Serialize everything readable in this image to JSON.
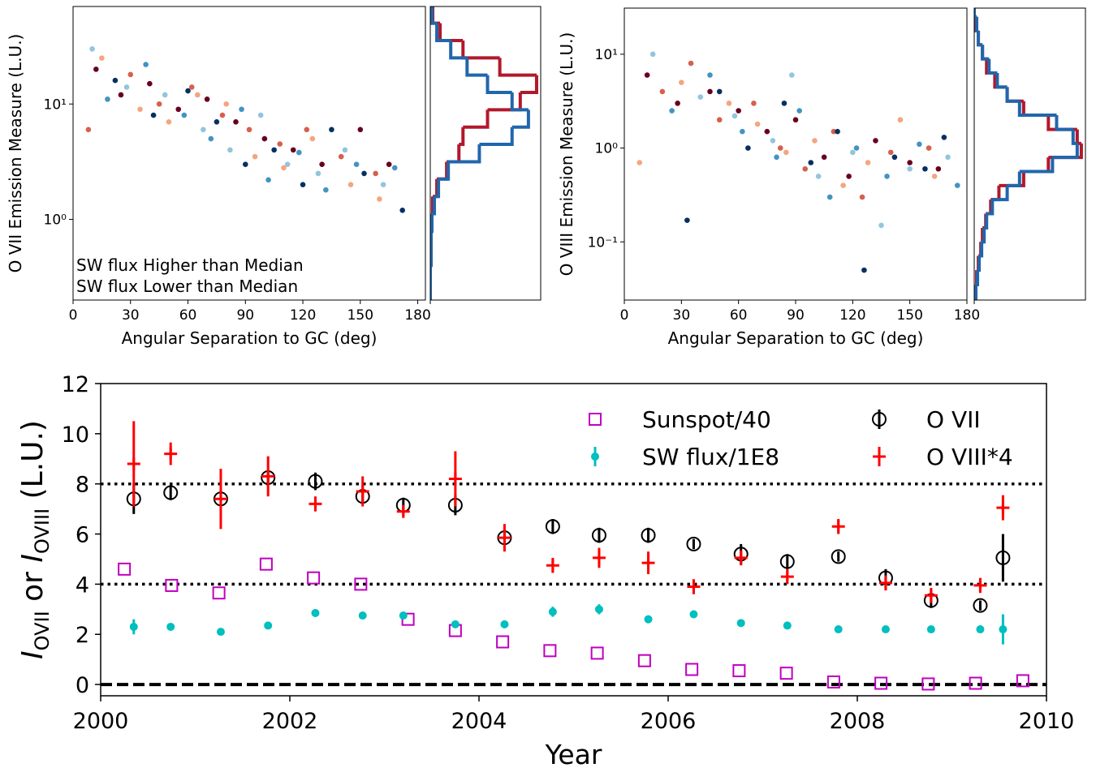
{
  "chart_data": [
    {
      "type": "scatter",
      "xlabel": "Angular Separation to GC (deg)",
      "ylabel": "O VII Emission Measure (L.U.)",
      "xlim": [
        0,
        184
      ],
      "xticks": [
        0,
        30,
        60,
        90,
        120,
        150,
        180
      ],
      "ylim": [
        0.2,
        70
      ],
      "yscale": "log",
      "yticks": [
        {
          "value": 1,
          "label": "10⁰"
        },
        {
          "value": 10,
          "label": "10¹"
        }
      ],
      "series": [
        {
          "color": "#67001f",
          "x": [
            12,
            25,
            40,
            55,
            70,
            85,
            100,
            115,
            130,
            150,
            165
          ],
          "y": [
            20,
            12,
            15,
            9,
            11,
            7,
            5,
            4,
            3,
            6,
            3
          ]
        },
        {
          "color": "#d6604d",
          "x": [
            8,
            30,
            45,
            62,
            78,
            92,
            108,
            122,
            140,
            158
          ],
          "y": [
            6,
            18,
            10,
            14,
            8,
            6,
            4.5,
            6,
            3.5,
            2.5
          ]
        },
        {
          "color": "#f4a582",
          "x": [
            15,
            35,
            50,
            65,
            80,
            95,
            110,
            125,
            145,
            160
          ],
          "y": [
            25,
            9,
            7,
            12,
            10,
            3.5,
            2.8,
            5,
            2,
            1.5
          ]
        },
        {
          "color": "#92c5de",
          "x": [
            10,
            28,
            48,
            68,
            82,
            98,
            112,
            128,
            142,
            162
          ],
          "y": [
            30,
            14,
            12,
            6,
            4,
            8,
            3,
            2.5,
            4,
            2
          ]
        },
        {
          "color": "#4393c3",
          "x": [
            18,
            38,
            58,
            72,
            88,
            102,
            118,
            132,
            148,
            168
          ],
          "y": [
            11,
            22,
            8,
            5,
            9,
            2.2,
            3.8,
            1.8,
            3,
            2.8
          ]
        },
        {
          "color": "#053061",
          "x": [
            22,
            42,
            60,
            75,
            90,
            105,
            120,
            135,
            152,
            172
          ],
          "y": [
            16,
            8,
            13,
            7,
            3,
            4,
            2,
            6,
            2.5,
            1.2
          ]
        }
      ],
      "hist_xlim": [
        0,
        135
      ],
      "histograms": [
        {
          "color": "#b2182b",
          "bins": [
            0.2,
            0.28,
            0.4,
            0.56,
            0.79,
            1.12,
            1.58,
            2.24,
            3.16,
            4.47,
            6.31,
            8.91,
            12.6,
            17.8,
            25.1,
            35.5,
            50.1,
            70.8
          ],
          "counts": [
            0,
            0,
            1,
            1,
            2,
            3,
            8,
            20,
            35,
            40,
            70,
            110,
            130,
            85,
            40,
            12,
            3
          ]
        },
        {
          "color": "#2166ac",
          "bins": [
            0.2,
            0.28,
            0.4,
            0.56,
            0.79,
            1.12,
            1.58,
            2.24,
            3.16,
            4.47,
            6.31,
            8.91,
            12.6,
            17.8,
            25.1,
            35.5,
            50.1,
            70.8
          ],
          "counts": [
            0,
            0,
            1,
            1,
            2,
            5,
            10,
            22,
            60,
            100,
            120,
            100,
            70,
            45,
            25,
            8,
            2
          ]
        }
      ],
      "annotations": [
        {
          "text": "SW flux Higher than Median",
          "color": "#b2182b"
        },
        {
          "text": "SW flux Lower than Median",
          "color": "#2166ac"
        }
      ]
    },
    {
      "type": "scatter",
      "xlabel": "Angular Separation to GC (deg)",
      "ylabel": "O VIII Emission Measure (L.U.)",
      "xlim": [
        0,
        180
      ],
      "xticks": [
        0,
        30,
        60,
        90,
        120,
        150,
        180
      ],
      "ylim": [
        0.024,
        31
      ],
      "yscale": "log",
      "yticks": [
        {
          "value": 0.1,
          "label": "10⁻¹"
        },
        {
          "value": 1,
          "label": "10⁰"
        },
        {
          "value": 10,
          "label": "10¹"
        }
      ],
      "series": [
        {
          "color": "#67001f",
          "x": [
            12,
            28,
            45,
            60,
            75,
            90,
            105,
            118,
            132,
            150,
            165
          ],
          "y": [
            6,
            3,
            4,
            2.5,
            1.5,
            2,
            0.8,
            0.5,
            1.2,
            0.7,
            0.6
          ]
        },
        {
          "color": "#d6604d",
          "x": [
            20,
            35,
            50,
            68,
            82,
            95,
            110,
            125,
            140,
            160
          ],
          "y": [
            4,
            8,
            2,
            3,
            1,
            0.6,
            1.5,
            0.3,
            0.9,
            1
          ]
        },
        {
          "color": "#f4a582",
          "x": [
            8,
            30,
            55,
            70,
            85,
            100,
            115,
            128,
            145,
            163
          ],
          "y": [
            0.7,
            5,
            3,
            1.8,
            0.9,
            1.2,
            0.4,
            0.7,
            2,
            0.5
          ]
        },
        {
          "color": "#92c5de",
          "x": [
            15,
            40,
            58,
            78,
            88,
            102,
            120,
            135,
            150,
            170
          ],
          "y": [
            10,
            3.5,
            2.2,
            1.2,
            6,
            0.5,
            0.9,
            0.15,
            0.6,
            0.8
          ]
        },
        {
          "color": "#4393c3",
          "x": [
            25,
            45,
            62,
            80,
            92,
            108,
            122,
            138,
            155,
            175
          ],
          "y": [
            2.5,
            6,
            1.5,
            0.8,
            2.5,
            0.3,
            1,
            0.5,
            1.1,
            0.4
          ]
        },
        {
          "color": "#053061",
          "x": [
            33,
            50,
            65,
            84,
            98,
            112,
            126,
            142,
            158,
            168
          ],
          "y": [
            0.17,
            4,
            1,
            3,
            0.7,
            1.5,
            0.05,
            0.8,
            0.6,
            1.3
          ]
        }
      ],
      "hist_xlim": [
        0,
        135
      ],
      "histograms": [
        {
          "color": "#b2182b",
          "bins": [
            0.025,
            0.035,
            0.05,
            0.071,
            0.1,
            0.141,
            0.2,
            0.282,
            0.398,
            0.562,
            0.794,
            1.12,
            1.58,
            2.24,
            3.16,
            4.47,
            6.31,
            8.91,
            12.6,
            17.8,
            25.1,
            35.5
          ],
          "counts": [
            2,
            3,
            5,
            8,
            10,
            14,
            20,
            30,
            60,
            90,
            130,
            125,
            90,
            60,
            40,
            25,
            15,
            10,
            5,
            2,
            0
          ]
        },
        {
          "color": "#2166ac",
          "bins": [
            0.025,
            0.035,
            0.05,
            0.071,
            0.1,
            0.141,
            0.2,
            0.282,
            0.398,
            0.562,
            0.794,
            1.12,
            1.58,
            2.24,
            3.16,
            4.47,
            6.31,
            8.91,
            12.6,
            17.8,
            25.1,
            35.5
          ],
          "counts": [
            2,
            4,
            6,
            9,
            12,
            15,
            22,
            40,
            55,
            95,
            125,
            120,
            100,
            55,
            40,
            28,
            18,
            10,
            5,
            3,
            0
          ]
        }
      ]
    },
    {
      "type": "errorbar",
      "xlabel": "Year",
      "ylabel_parts": [
        "I",
        "OVII",
        " or ",
        "I",
        "OVIII",
        " (L.U.)"
      ],
      "xlim": [
        2000,
        2010
      ],
      "xticks": [
        2000,
        2002,
        2004,
        2006,
        2008,
        2010
      ],
      "ylim": [
        -0.45,
        12
      ],
      "yticks": [
        0,
        2,
        4,
        6,
        8,
        10,
        12
      ],
      "hlines": [
        {
          "y": 8,
          "style": "dotted"
        },
        {
          "y": 4,
          "style": "dotted"
        },
        {
          "y": 0,
          "style": "dashed"
        }
      ],
      "legend": "upper right",
      "series": [
        {
          "name": "Sunspot/40",
          "color": "#bf00bf",
          "marker": "square",
          "x": [
            2000.25,
            2000.75,
            2001.25,
            2001.75,
            2002.25,
            2002.75,
            2003.25,
            2003.75,
            2004.25,
            2004.75,
            2005.25,
            2005.75,
            2006.25,
            2006.75,
            2007.25,
            2007.75,
            2008.25,
            2008.75,
            2009.25,
            2009.75
          ],
          "values": [
            4.6,
            3.95,
            3.65,
            4.8,
            4.25,
            4.0,
            2.6,
            2.15,
            1.7,
            1.35,
            1.25,
            0.95,
            0.6,
            0.55,
            0.45,
            0.1,
            0.05,
            0.02,
            0.05,
            0.15
          ]
        },
        {
          "name": "SW flux/1E8",
          "color": "#00bfbf",
          "marker": "dot",
          "x": [
            2000.35,
            2000.74,
            2001.27,
            2001.77,
            2002.27,
            2002.77,
            2003.2,
            2003.75,
            2004.27,
            2004.78,
            2005.27,
            2005.79,
            2006.27,
            2006.77,
            2007.26,
            2007.8,
            2008.3,
            2008.78,
            2009.3,
            2009.54
          ],
          "values": [
            2.3,
            2.3,
            2.1,
            2.35,
            2.85,
            2.75,
            2.75,
            2.4,
            2.4,
            2.9,
            3.0,
            2.6,
            2.8,
            2.45,
            2.35,
            2.2,
            2.2,
            2.2,
            2.2,
            2.2
          ],
          "errors": [
            0.3,
            0.1,
            0.1,
            0.1,
            0.15,
            0.1,
            0.1,
            0.1,
            0.1,
            0.2,
            0.2,
            0.15,
            0.15,
            0.1,
            0.1,
            0.1,
            0.1,
            0.1,
            0.1,
            0.6
          ]
        },
        {
          "name": "O VII",
          "color": "#000000",
          "marker": "circle",
          "x": [
            2000.35,
            2000.74,
            2001.27,
            2001.77,
            2002.27,
            2002.77,
            2003.2,
            2003.75,
            2004.27,
            2004.78,
            2005.27,
            2005.79,
            2006.27,
            2006.77,
            2007.26,
            2007.8,
            2008.3,
            2008.78,
            2009.3,
            2009.54
          ],
          "values": [
            7.4,
            7.65,
            7.4,
            8.25,
            8.1,
            7.5,
            7.15,
            7.15,
            5.85,
            6.3,
            5.95,
            5.95,
            5.6,
            5.2,
            4.9,
            5.1,
            4.25,
            3.35,
            3.15,
            5.05
          ],
          "errors": [
            0.6,
            0.3,
            0.3,
            0.2,
            0.35,
            0.3,
            0.3,
            0.4,
            0.3,
            0.3,
            0.3,
            0.3,
            0.2,
            0.4,
            0.3,
            0.2,
            0.35,
            0.3,
            0.2,
            0.95
          ]
        },
        {
          "name": "O VIII*4",
          "color": "#ff0000",
          "marker": "plus",
          "x": [
            2000.35,
            2000.74,
            2001.27,
            2001.77,
            2002.27,
            2002.77,
            2003.2,
            2003.75,
            2004.27,
            2004.78,
            2005.27,
            2005.79,
            2006.27,
            2006.77,
            2007.26,
            2007.8,
            2008.3,
            2008.78,
            2009.3,
            2009.54
          ],
          "values": [
            8.8,
            9.2,
            7.4,
            8.3,
            7.2,
            7.7,
            6.9,
            8.2,
            5.85,
            4.75,
            5.05,
            4.85,
            3.9,
            5.05,
            4.3,
            6.3,
            4.05,
            3.55,
            3.95,
            7.05
          ],
          "errors": [
            1.7,
            0.45,
            1.2,
            0.8,
            0.3,
            0.6,
            0.2,
            1.1,
            0.55,
            0.3,
            0.4,
            0.45,
            0.3,
            0.3,
            0.3,
            0.3,
            0.3,
            0.3,
            0.3,
            0.5
          ]
        }
      ]
    }
  ]
}
